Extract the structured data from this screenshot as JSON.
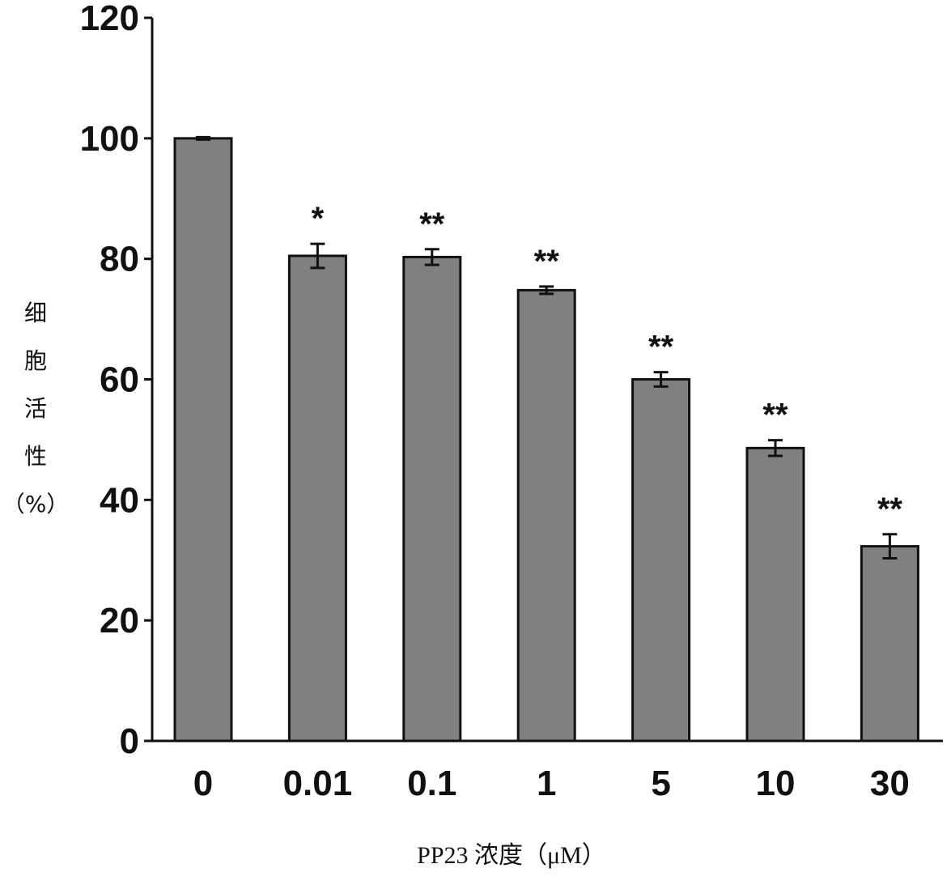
{
  "chart_data": {
    "type": "bar",
    "categories": [
      "0",
      "0.01",
      "0.1",
      "1",
      "5",
      "10",
      "30"
    ],
    "values": [
      100,
      80.5,
      80.3,
      74.8,
      60.0,
      48.6,
      32.3
    ],
    "errors": [
      0.2,
      2.0,
      1.3,
      0.6,
      1.2,
      1.3,
      2.0
    ],
    "significance": [
      "",
      "*",
      "**",
      "**",
      "**",
      "**",
      "**"
    ],
    "ylabel": "细胞活性（%）",
    "xlabel": "PP23 浓度（μM）",
    "ylim": [
      0,
      120
    ],
    "yticks": [
      0,
      20,
      40,
      60,
      80,
      100,
      120
    ],
    "bar_color": "#808080",
    "grid": false
  }
}
